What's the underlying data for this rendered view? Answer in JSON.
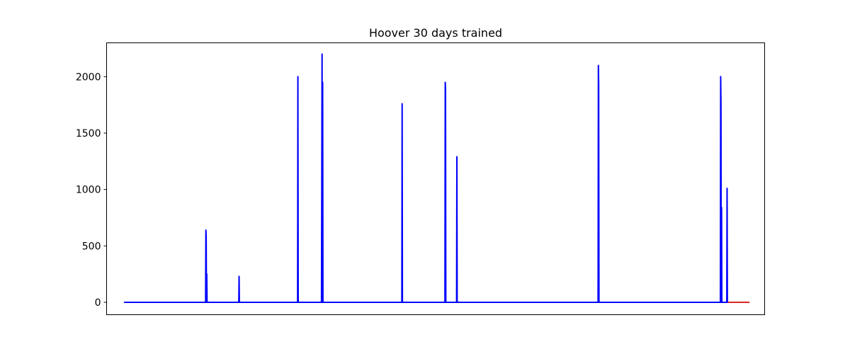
{
  "chart_data": {
    "type": "line",
    "title": "Hoover 30 days trained",
    "xlabel": "",
    "ylabel": "",
    "x_ticks_visible": false,
    "xlim": [
      -30,
      1100
    ],
    "ylim": [
      -110,
      2300
    ],
    "yticks": [
      0,
      500,
      1000,
      1500,
      2000
    ],
    "ytick_labels": [
      "0",
      "500",
      "1000",
      "1500",
      "2000"
    ],
    "grid": false,
    "series": [
      {
        "color": "#0000ff",
        "points": [
          [
            0,
            0
          ],
          [
            140,
            0
          ],
          [
            140.5,
            640
          ],
          [
            141,
            580
          ],
          [
            141.5,
            0
          ],
          [
            142,
            250
          ],
          [
            142.5,
            0
          ],
          [
            197,
            0
          ],
          [
            197.5,
            230
          ],
          [
            198,
            0
          ],
          [
            298,
            0
          ],
          [
            298.5,
            2000
          ],
          [
            299,
            0
          ],
          [
            339,
            0
          ],
          [
            339.5,
            970
          ],
          [
            340,
            2200
          ],
          [
            340.5,
            0
          ],
          [
            341,
            1950
          ],
          [
            341.5,
            0
          ],
          [
            477,
            0
          ],
          [
            477.5,
            1760
          ],
          [
            478,
            0
          ],
          [
            551,
            0
          ],
          [
            551.5,
            1950
          ],
          [
            552,
            1890
          ],
          [
            552.5,
            0
          ],
          [
            571,
            0
          ],
          [
            571.5,
            1290
          ],
          [
            572,
            0
          ],
          [
            814,
            0
          ],
          [
            814.5,
            2100
          ],
          [
            815,
            1930
          ],
          [
            815.5,
            0
          ],
          [
            1024,
            0
          ],
          [
            1024.5,
            2000
          ],
          [
            1025,
            1760
          ],
          [
            1025.5,
            0
          ],
          [
            1026,
            840
          ],
          [
            1026.5,
            0
          ],
          [
            1035,
            0
          ],
          [
            1035.5,
            1010
          ],
          [
            1036,
            0
          ],
          [
            1037,
            0
          ]
        ]
      },
      {
        "color": "#d62728",
        "points": [
          [
            1037,
            0
          ],
          [
            1074,
            0
          ]
        ]
      }
    ]
  }
}
